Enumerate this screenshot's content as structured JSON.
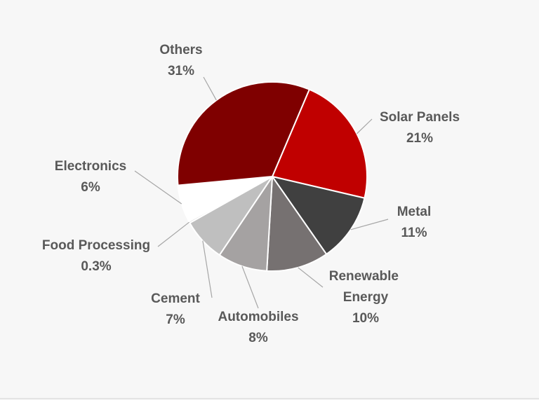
{
  "chart_data": {
    "type": "pie",
    "categories": [
      "Solar Panels",
      "Metal",
      "Renewable Energy",
      "Automobiles",
      "Cement",
      "Food Processing",
      "Electronics",
      "Others"
    ],
    "values": [
      21,
      11,
      10,
      8,
      7,
      0.3,
      6,
      31
    ],
    "value_labels": [
      "21%",
      "11%",
      "10%",
      "8%",
      "7%",
      "0.3%",
      "6%",
      "31%"
    ],
    "colors": [
      "#c00000",
      "#404040",
      "#767171",
      "#a5a2a2",
      "#bfbfbf",
      "#d9d9d9",
      "#ffffff",
      "#7f0000"
    ]
  }
}
